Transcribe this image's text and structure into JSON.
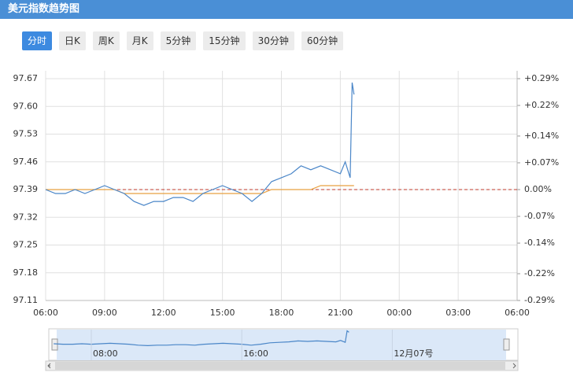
{
  "header": {
    "title": "美元指数趋势图"
  },
  "tabs": [
    "分时",
    "日K",
    "周K",
    "月K",
    "5分钟",
    "15分钟",
    "30分钟",
    "60分钟"
  ],
  "active_tab": 0,
  "chart_data": {
    "type": "line",
    "x": [
      6,
      6.5,
      7,
      7.5,
      8,
      8.5,
      9,
      9.5,
      10,
      10.5,
      11,
      11.5,
      12,
      12.5,
      13,
      13.5,
      14,
      14.5,
      15,
      15.5,
      16,
      16.5,
      17,
      17.5,
      18,
      18.5,
      19,
      19.5,
      20,
      20.5,
      21,
      21.25,
      21.5,
      21.6,
      21.7
    ],
    "series": [
      {
        "color": "#4a86c8",
        "values": [
          97.39,
          97.38,
          97.38,
          97.39,
          97.38,
          97.39,
          97.4,
          97.39,
          97.38,
          97.36,
          97.35,
          97.36,
          97.36,
          97.37,
          97.37,
          97.36,
          97.38,
          97.39,
          97.4,
          97.39,
          97.38,
          97.36,
          97.38,
          97.41,
          97.42,
          97.43,
          97.45,
          97.44,
          97.45,
          97.44,
          97.43,
          97.46,
          97.42,
          97.66,
          97.63
        ]
      },
      {
        "color": "#e8a040",
        "values": [
          97.39,
          97.39,
          97.39,
          97.39,
          97.39,
          97.39,
          97.39,
          97.39,
          97.38,
          97.38,
          97.38,
          97.38,
          97.38,
          97.38,
          97.38,
          97.38,
          97.38,
          97.38,
          97.38,
          97.38,
          97.38,
          97.38,
          97.38,
          97.39,
          97.39,
          97.39,
          97.39,
          97.39,
          97.4,
          97.4,
          97.4,
          97.4,
          97.4,
          97.4,
          97.4
        ]
      }
    ],
    "baseline": 97.39,
    "baseline_color": "#c0392b",
    "xlim": [
      6,
      30
    ],
    "xticks": [
      {
        "value": 6,
        "label": "06:00"
      },
      {
        "value": 9,
        "label": "09:00"
      },
      {
        "value": 12,
        "label": "12:00"
      },
      {
        "value": 15,
        "label": "15:00"
      },
      {
        "value": 18,
        "label": "18:00"
      },
      {
        "value": 21,
        "label": "21:00"
      },
      {
        "value": 24,
        "label": "00:00"
      },
      {
        "value": 27,
        "label": "03:00"
      },
      {
        "value": 30,
        "label": "06:00"
      }
    ],
    "ylim": [
      97.11,
      97.67
    ],
    "yticks": [
      97.11,
      97.18,
      97.25,
      97.32,
      97.39,
      97.46,
      97.53,
      {
        "value": 97.6,
        "label": "97.60"
      },
      97.67
    ],
    "y2lim": [
      -0.29,
      0.29
    ],
    "y2ticks": [
      {
        "value": -0.29,
        "label": "-0.29%"
      },
      {
        "value": -0.22,
        "label": "-0.22%"
      },
      {
        "value": -0.14,
        "label": "-0.14%"
      },
      {
        "value": -0.07,
        "label": "-0.07%"
      },
      {
        "value": 0,
        "label": "0.00%"
      },
      {
        "value": 0.07,
        "label": "+0.07%"
      },
      {
        "value": 0.14,
        "label": "+0.14%"
      },
      {
        "value": 0.22,
        "label": "+0.22%"
      },
      {
        "value": 0.29,
        "label": "+0.29%"
      }
    ],
    "y2_colors": {
      "up": "#d93030",
      "flat": "#999999",
      "down": "#2a8a2a"
    },
    "grid": true,
    "navigator": {
      "xticks": [
        {
          "value": 8,
          "label": "08:00"
        },
        {
          "value": 16,
          "label": "16:00"
        },
        {
          "value": 24,
          "label": "12月07号"
        }
      ]
    }
  }
}
